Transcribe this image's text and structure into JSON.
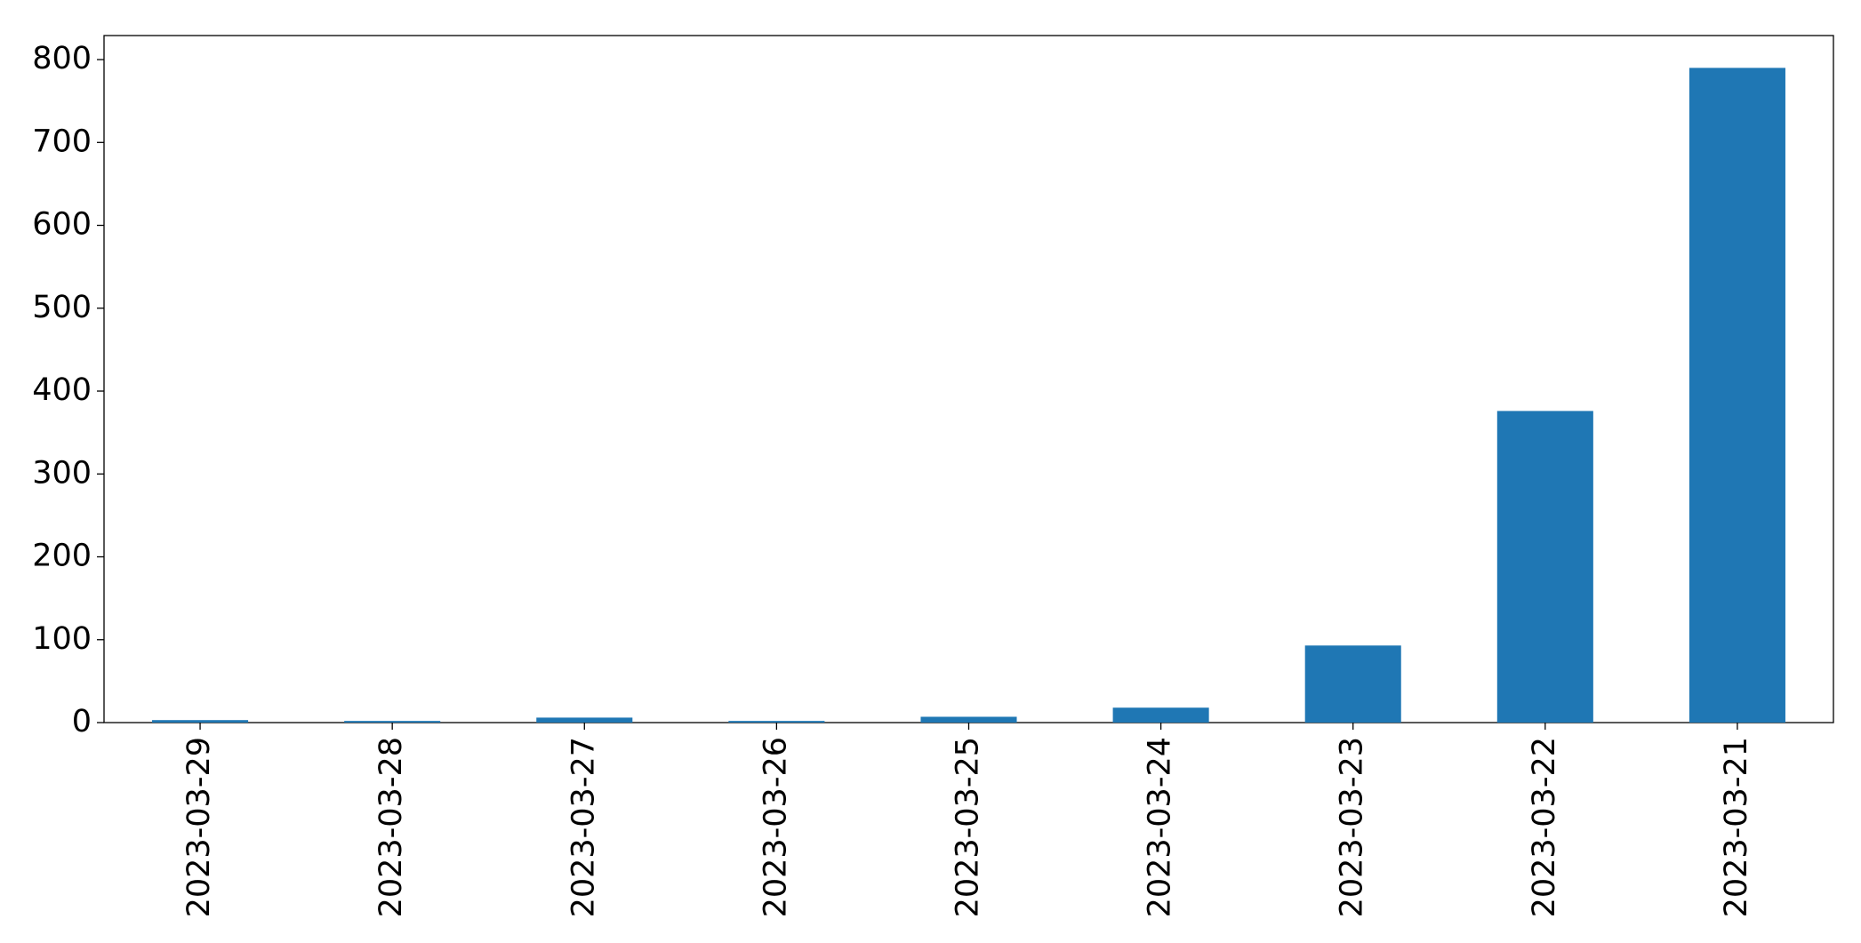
{
  "chart_data": {
    "type": "bar",
    "categories": [
      "2023-03-29",
      "2023-03-28",
      "2023-03-27",
      "2023-03-26",
      "2023-03-25",
      "2023-03-24",
      "2023-03-23",
      "2023-03-22",
      "2023-03-21"
    ],
    "values": [
      3,
      2,
      6,
      2,
      7,
      18,
      93,
      376,
      790
    ],
    "color": "#1f77b4",
    "ylim": [
      0,
      829
    ],
    "yticks": [
      0,
      100,
      200,
      300,
      400,
      500,
      600,
      700,
      800
    ],
    "grid": false
  }
}
